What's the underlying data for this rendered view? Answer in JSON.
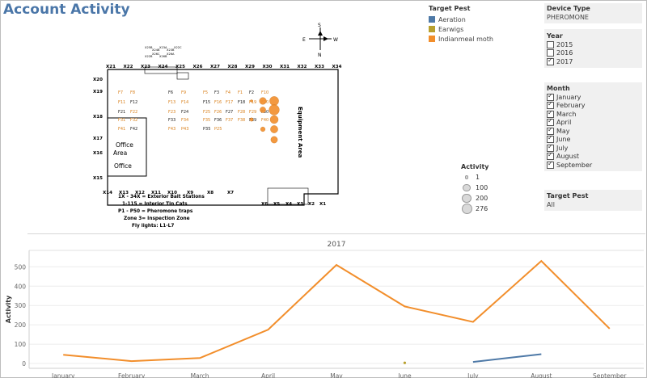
{
  "title": "Account Activity",
  "target_pest_legend": {
    "header": "Target Pest",
    "items": [
      {
        "label": "Aeration",
        "color": "#4e79a7"
      },
      {
        "label": "Earwigs",
        "color": "#b8a02e"
      },
      {
        "label": "Indianmeal moth",
        "color": "#f28e2b"
      }
    ]
  },
  "activity_legend": {
    "header": "Activity",
    "items": [
      {
        "label": "1",
        "size": 1
      },
      {
        "label": "100",
        "size": 100
      },
      {
        "label": "200",
        "size": 200
      },
      {
        "label": "276",
        "size": 276
      }
    ]
  },
  "filters": {
    "device_type": {
      "header": "Device Type",
      "value": "PHEROMONE"
    },
    "year": {
      "header": "Year",
      "options": [
        {
          "label": "2015",
          "checked": false
        },
        {
          "label": "2016",
          "checked": false
        },
        {
          "label": "2017",
          "checked": true
        }
      ]
    },
    "month": {
      "header": "Month",
      "options": [
        {
          "label": "January",
          "checked": true
        },
        {
          "label": "February",
          "checked": true
        },
        {
          "label": "March",
          "checked": true
        },
        {
          "label": "April",
          "checked": true
        },
        {
          "label": "May",
          "checked": true
        },
        {
          "label": "June",
          "checked": true
        },
        {
          "label": "July",
          "checked": true
        },
        {
          "label": "August",
          "checked": true
        },
        {
          "label": "September",
          "checked": true
        }
      ]
    },
    "target_pest": {
      "header": "Target Pest",
      "value": "All"
    }
  },
  "floor_plan": {
    "top_labels": [
      "X21",
      "X22",
      "X23",
      "X24",
      "X25",
      "X26",
      "X27",
      "X28",
      "X29",
      "X30",
      "X31",
      "X32",
      "X33",
      "X34"
    ],
    "left_labels": [
      "X20",
      "X19",
      "X18",
      "X17",
      "X16",
      "X15"
    ],
    "bottom_labels": [
      "X14",
      "X13",
      "X12",
      "X11",
      "X10",
      "X9",
      "X8",
      "X7",
      "X6",
      "X5",
      "X4",
      "X3",
      "X2",
      "X1"
    ],
    "top_small": [
      "X25B",
      "X24B",
      "X23A",
      "X23B",
      "X22C",
      "X22B",
      "X26C",
      "X26B",
      "X26A"
    ],
    "trap_labels": [
      "F7",
      "F8",
      "F6",
      "F9",
      "F5",
      "F3",
      "F4",
      "F1",
      "F2",
      "F10",
      "F11",
      "F12",
      "F13",
      "F14",
      "F15",
      "F16",
      "F17",
      "F18",
      "F19",
      "F20",
      "F21",
      "F22",
      "F23",
      "F24",
      "F25",
      "F26",
      "F27",
      "F28",
      "F29",
      "F30",
      "F31",
      "F32",
      "F33",
      "F34",
      "F35",
      "F36",
      "F37",
      "F38",
      "F39",
      "F40",
      "F41",
      "F42",
      "F43",
      "P43",
      "P35",
      "P25"
    ],
    "room_labels": [
      "Office",
      "Area",
      "Office"
    ],
    "equipment_label": "Equipment Area",
    "notes": [
      "1X - 34X = Exterior Bait Stations",
      "1-115 = Interior Tin Cats",
      "P1 - P50 = Pheromone traps",
      "Zone 3= Inspection Zone",
      "Fly lights: L1-L7"
    ],
    "compass": {
      "n": "N",
      "s": "S",
      "e": "E",
      "w": "W"
    },
    "bubbles": [
      {
        "activity": 1,
        "color": "#f28e2b"
      },
      {
        "activity": 100,
        "color": "#f28e2b"
      },
      {
        "activity": 200,
        "color": "#f28e2b"
      },
      {
        "activity": 276,
        "color": "#f28e2b"
      },
      {
        "activity": 150,
        "color": "#f28e2b"
      },
      {
        "activity": 120,
        "color": "#f28e2b"
      },
      {
        "activity": 90,
        "color": "#f28e2b"
      },
      {
        "activity": 60,
        "color": "#f28e2b"
      },
      {
        "activity": 30,
        "color": "#f28e2b"
      },
      {
        "activity": 10,
        "color": "#f28e2b"
      }
    ]
  },
  "chart_data": {
    "type": "line",
    "title": "2017",
    "xlabel": "",
    "ylabel": "Activity",
    "categories": [
      "January",
      "February",
      "March",
      "April",
      "May",
      "June",
      "July",
      "August",
      "September"
    ],
    "ylim": [
      0,
      560
    ],
    "yticks": [
      0,
      100,
      200,
      300,
      400,
      500
    ],
    "grid": true,
    "series": [
      {
        "name": "Indianmeal moth",
        "color": "#f28e2b",
        "values": [
          45,
          12,
          28,
          175,
          510,
          295,
          215,
          530,
          180
        ]
      },
      {
        "name": "Earwigs",
        "color": "#b8a02e",
        "values": [
          null,
          null,
          null,
          null,
          null,
          3,
          null,
          null,
          null
        ]
      },
      {
        "name": "Aeration",
        "color": "#4e79a7",
        "values": [
          null,
          null,
          null,
          null,
          null,
          null,
          8,
          48,
          null
        ]
      }
    ]
  }
}
